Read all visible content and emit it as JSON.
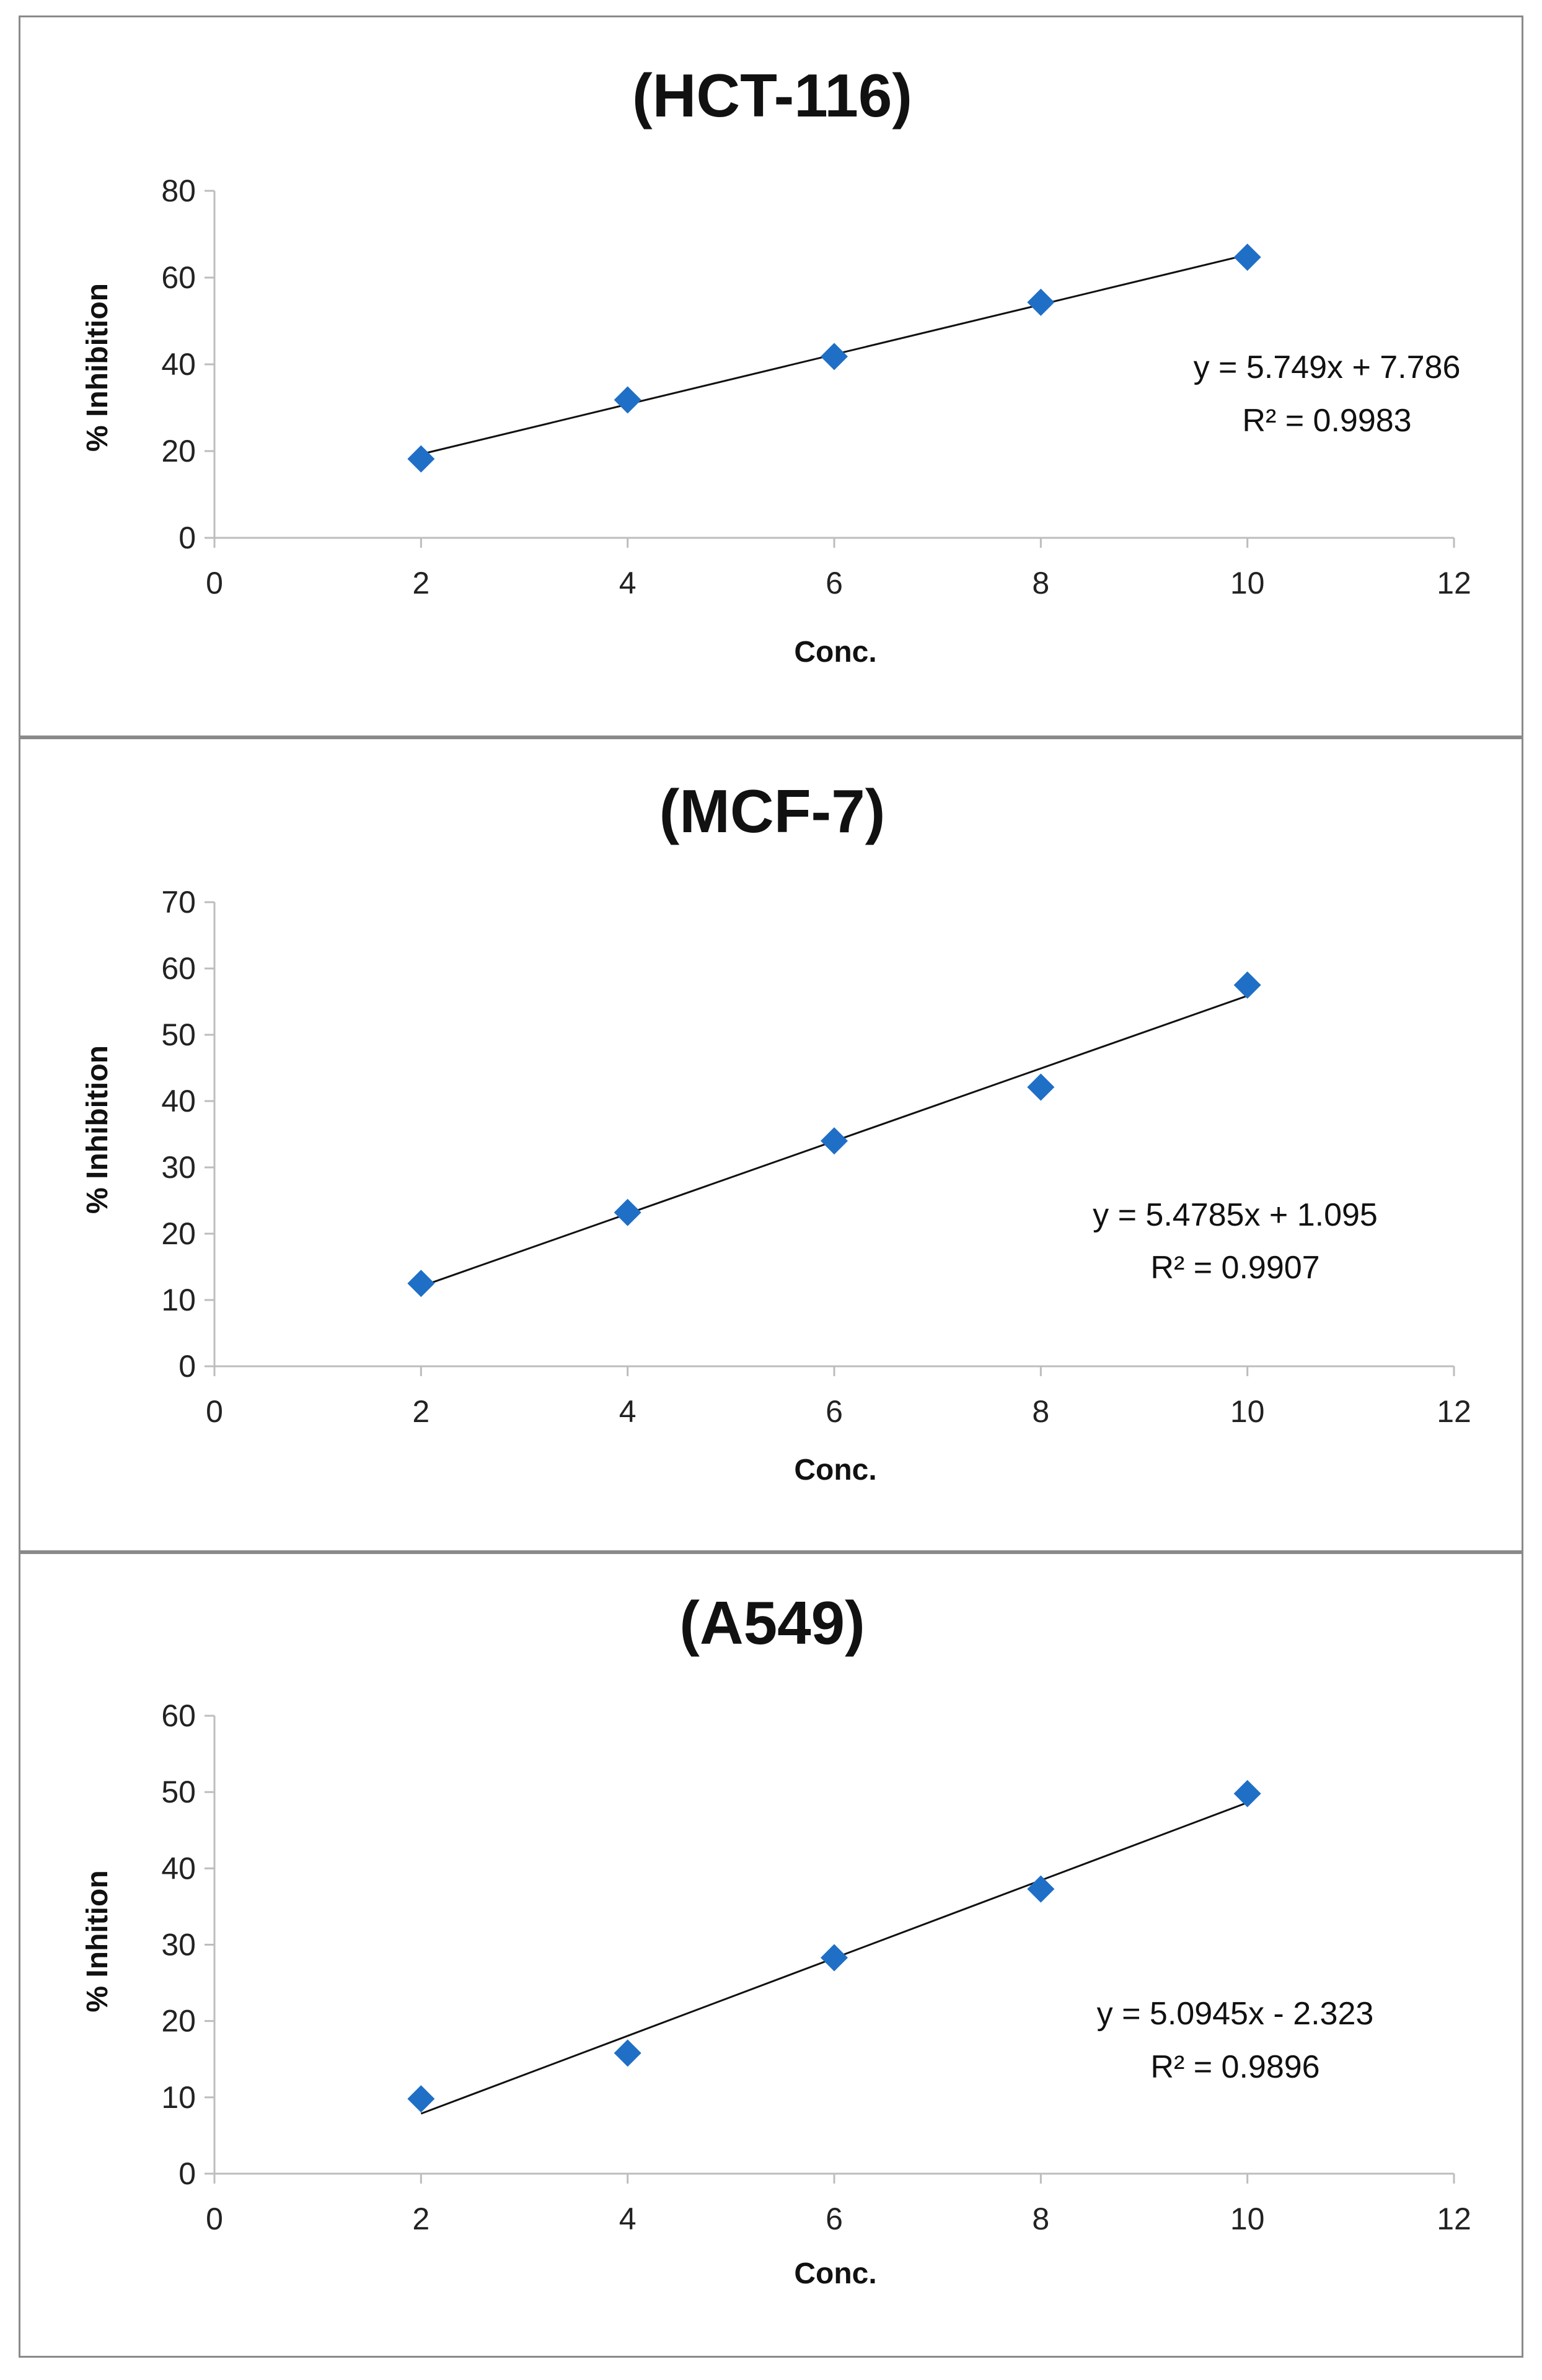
{
  "chart_data": [
    {
      "type": "scatter",
      "title": "(HCT-116)",
      "xlabel": "Conc.",
      "ylabel": "% Inhibition",
      "xlim": [
        0,
        12
      ],
      "ylim": [
        0,
        80
      ],
      "x_ticks": [
        0,
        2,
        4,
        6,
        8,
        10,
        12
      ],
      "y_ticks": [
        0,
        20,
        40,
        60,
        80
      ],
      "grid": false,
      "marker": "diamond",
      "color": "#1f6fc6",
      "series": [
        {
          "x": [
            2,
            4,
            6,
            8,
            10
          ],
          "y": [
            18.2,
            31.8,
            41.8,
            54.3,
            64.7
          ]
        }
      ],
      "trendline": {
        "slope": 5.749,
        "intercept": 7.786,
        "x_range": [
          2,
          10
        ]
      },
      "equation": "y = 5.749x + 7.786",
      "r_squared": "R² = 0.9983"
    },
    {
      "type": "scatter",
      "title": "(MCF-7)",
      "xlabel": "Conc.",
      "ylabel": "% Inhibition",
      "xlim": [
        0,
        12
      ],
      "ylim": [
        0,
        70
      ],
      "x_ticks": [
        0,
        2,
        4,
        6,
        8,
        10,
        12
      ],
      "y_ticks": [
        0,
        10,
        20,
        30,
        40,
        50,
        60,
        70
      ],
      "grid": false,
      "marker": "diamond",
      "color": "#1f6fc6",
      "series": [
        {
          "x": [
            2,
            4,
            6,
            8,
            10
          ],
          "y": [
            12.5,
            23.2,
            34.0,
            42.1,
            57.5
          ]
        }
      ],
      "trendline": {
        "slope": 5.4785,
        "intercept": 1.095,
        "x_range": [
          2,
          10
        ]
      },
      "equation": "y = 5.4785x + 1.095",
      "r_squared": "R² = 0.9907"
    },
    {
      "type": "scatter",
      "title": "(A549)",
      "xlabel": "Conc.",
      "ylabel": "% Inhition",
      "xlim": [
        0,
        12
      ],
      "ylim": [
        0,
        60
      ],
      "x_ticks": [
        0,
        2,
        4,
        6,
        8,
        10,
        12
      ],
      "y_ticks": [
        0,
        10,
        20,
        30,
        40,
        50,
        60
      ],
      "grid": false,
      "marker": "diamond",
      "color": "#1f6fc6",
      "series": [
        {
          "x": [
            2,
            4,
            6,
            8,
            10
          ],
          "y": [
            9.8,
            15.8,
            28.3,
            37.3,
            49.8
          ]
        }
      ],
      "trendline": {
        "slope": 5.0945,
        "intercept": -2.323,
        "x_range": [
          2,
          10
        ]
      },
      "equation": "y = 5.0945x - 2.323",
      "r_squared": "R² = 0.9896"
    }
  ]
}
